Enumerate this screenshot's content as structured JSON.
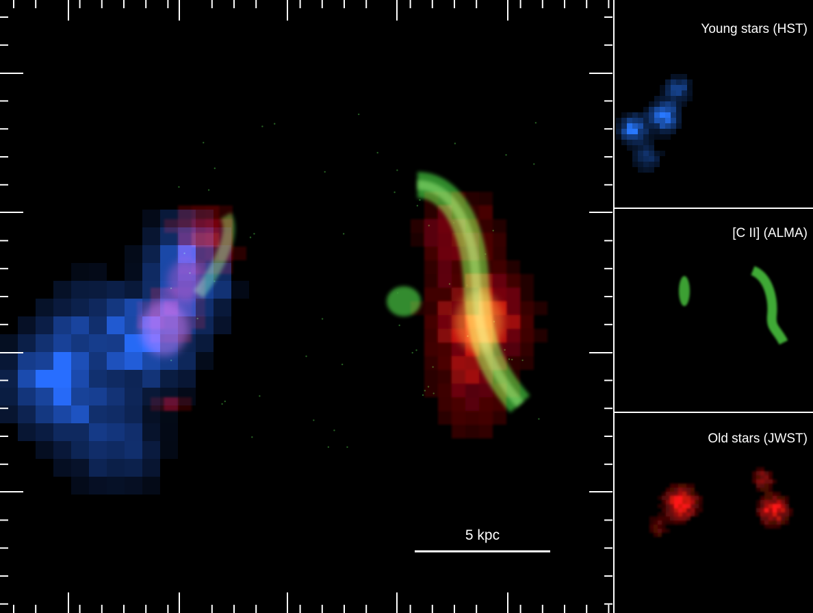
{
  "main": {
    "scale_bar": "5 kpc"
  },
  "panels": [
    {
      "label": "Young stars (HST)"
    },
    {
      "label": "[C II] (ALMA)"
    },
    {
      "label": "Old stars (JWST)"
    }
  ]
}
